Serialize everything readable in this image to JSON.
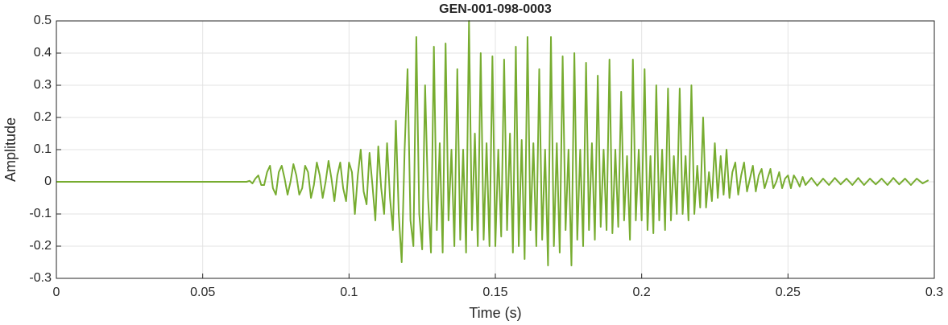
{
  "chart_data": {
    "type": "line",
    "title": "GEN-001-098-0003",
    "x_label": "Time (s)",
    "y_label": "Amplitude",
    "color": "#77ac30",
    "grid": true,
    "xlim": [
      0,
      0.3
    ],
    "xticks": [
      0,
      0.05,
      0.1,
      0.15,
      0.2,
      0.25,
      0.3
    ],
    "ylim": [
      -0.3,
      0.5
    ],
    "yticks": [
      -0.3,
      -0.2,
      -0.1,
      0,
      0.1,
      0.2,
      0.3,
      0.4,
      0.5
    ],
    "x": [
      0,
      0.01,
      0.02,
      0.03,
      0.04,
      0.05,
      0.06,
      0.065,
      0.066,
      0.067,
      0.068,
      0.069,
      0.07,
      0.071,
      0.072,
      0.073,
      0.074,
      0.075,
      0.076,
      0.077,
      0.078,
      0.079,
      0.08,
      0.081,
      0.082,
      0.083,
      0.084,
      0.085,
      0.086,
      0.087,
      0.088,
      0.089,
      0.09,
      0.091,
      0.092,
      0.093,
      0.094,
      0.095,
      0.096,
      0.097,
      0.098,
      0.099,
      0.1,
      0.101,
      0.102,
      0.103,
      0.104,
      0.105,
      0.106,
      0.107,
      0.108,
      0.109,
      0.11,
      0.111,
      0.112,
      0.113,
      0.114,
      0.115,
      0.116,
      0.117,
      0.118,
      0.119,
      0.12,
      0.121,
      0.122,
      0.123,
      0.124,
      0.125,
      0.126,
      0.127,
      0.128,
      0.129,
      0.13,
      0.131,
      0.132,
      0.133,
      0.134,
      0.135,
      0.136,
      0.137,
      0.138,
      0.139,
      0.14,
      0.141,
      0.142,
      0.143,
      0.144,
      0.145,
      0.146,
      0.147,
      0.148,
      0.149,
      0.15,
      0.151,
      0.152,
      0.153,
      0.154,
      0.155,
      0.156,
      0.157,
      0.158,
      0.159,
      0.16,
      0.161,
      0.162,
      0.163,
      0.164,
      0.165,
      0.166,
      0.167,
      0.168,
      0.169,
      0.17,
      0.171,
      0.172,
      0.173,
      0.174,
      0.175,
      0.176,
      0.177,
      0.178,
      0.179,
      0.18,
      0.181,
      0.182,
      0.183,
      0.184,
      0.185,
      0.186,
      0.187,
      0.188,
      0.189,
      0.19,
      0.191,
      0.192,
      0.193,
      0.194,
      0.195,
      0.196,
      0.197,
      0.198,
      0.199,
      0.2,
      0.201,
      0.202,
      0.203,
      0.204,
      0.205,
      0.206,
      0.207,
      0.208,
      0.209,
      0.21,
      0.211,
      0.212,
      0.213,
      0.214,
      0.215,
      0.216,
      0.217,
      0.218,
      0.219,
      0.22,
      0.221,
      0.222,
      0.223,
      0.224,
      0.225,
      0.226,
      0.227,
      0.228,
      0.229,
      0.23,
      0.231,
      0.232,
      0.233,
      0.234,
      0.235,
      0.236,
      0.237,
      0.238,
      0.239,
      0.24,
      0.241,
      0.242,
      0.243,
      0.244,
      0.245,
      0.246,
      0.247,
      0.248,
      0.249,
      0.25,
      0.251,
      0.252,
      0.253,
      0.254,
      0.255,
      0.256,
      0.258,
      0.26,
      0.262,
      0.264,
      0.266,
      0.268,
      0.27,
      0.272,
      0.274,
      0.276,
      0.278,
      0.28,
      0.282,
      0.284,
      0.286,
      0.288,
      0.29,
      0.292,
      0.294,
      0.296,
      0.298
    ],
    "values": [
      0,
      0,
      0,
      0,
      0,
      0,
      0,
      0,
      0.003,
      -0.005,
      0.01,
      0.02,
      -0.01,
      -0.01,
      0.03,
      0.05,
      -0.02,
      -0.04,
      0.03,
      0.05,
      0.01,
      -0.04,
      0,
      0.055,
      0.02,
      -0.04,
      -0.02,
      0.05,
      0.03,
      -0.05,
      -0.01,
      0.06,
      0.02,
      -0.05,
      0,
      0.065,
      0.01,
      -0.06,
      0.02,
      0.06,
      -0.02,
      -0.06,
      0.06,
      0.03,
      -0.1,
      0.02,
      0.1,
      -0.03,
      -0.07,
      0.09,
      -0.01,
      -0.12,
      0.11,
      -0.02,
      -0.1,
      0.12,
      -0.05,
      -0.15,
      0.19,
      -0.1,
      -0.25,
      0.1,
      0.35,
      -0.12,
      -0.2,
      0.45,
      -0.1,
      -0.21,
      0.3,
      -0.05,
      -0.22,
      0.42,
      -0.15,
      0.12,
      -0.22,
      0.43,
      -0.12,
      0.1,
      -0.2,
      0.35,
      -0.18,
      0.1,
      -0.22,
      0.5,
      -0.15,
      0.15,
      -0.2,
      0.4,
      -0.18,
      0.12,
      -0.2,
      0.39,
      -0.2,
      0.1,
      -0.17,
      0.38,
      -0.15,
      0.15,
      -0.22,
      0.42,
      -0.2,
      0.13,
      -0.24,
      0.45,
      -0.15,
      0.12,
      -0.2,
      0.35,
      -0.18,
      0.1,
      -0.26,
      0.45,
      -0.2,
      0.12,
      -0.22,
      0.39,
      -0.15,
      0.1,
      -0.26,
      0.4,
      -0.18,
      0.1,
      -0.2,
      0.37,
      -0.15,
      0.12,
      -0.18,
      0.33,
      -0.14,
      0.1,
      -0.15,
      0.38,
      -0.16,
      0.1,
      -0.14,
      0.28,
      -0.12,
      0.08,
      -0.18,
      0.38,
      -0.12,
      0.1,
      -0.12,
      0.35,
      -0.15,
      0.08,
      -0.16,
      0.3,
      -0.12,
      0.1,
      -0.15,
      0.29,
      -0.12,
      0.08,
      -0.1,
      0.29,
      -0.1,
      0.08,
      -0.12,
      0.3,
      -0.1,
      0.05,
      -0.08,
      0.2,
      -0.08,
      0.03,
      -0.06,
      0.12,
      -0.05,
      0.08,
      -0.04,
      0.1,
      -0.05,
      0.03,
      0.06,
      -0.04,
      0.02,
      0.06,
      -0.03,
      0.01,
      0.05,
      -0.03,
      0.02,
      0.04,
      -0.02,
      0.01,
      0.04,
      -0.02,
      0,
      0.03,
      -0.02,
      0.01,
      0.02,
      -0.02,
      0.02,
      0.005,
      -0.015,
      0.015,
      -0.01,
      0.012,
      -0.012,
      0.01,
      -0.01,
      0.012,
      -0.008,
      0.01,
      -0.01,
      0.012,
      -0.01,
      0.01,
      -0.008,
      0.01,
      -0.01,
      0.012,
      -0.008,
      0.01,
      -0.01,
      0.01,
      -0.005,
      0.005
    ]
  }
}
